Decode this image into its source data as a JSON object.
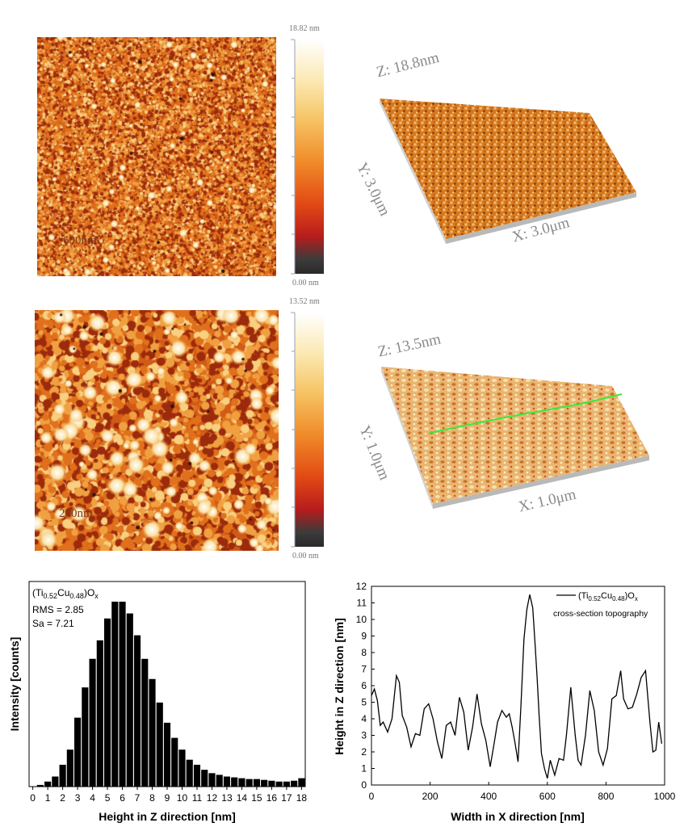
{
  "afm_2d": [
    {
      "scale_text": "600nm",
      "cbar_max": "18.82 nm",
      "cbar_min": "0.00 nm"
    },
    {
      "scale_text": "200nm",
      "cbar_max": "13.52 nm",
      "cbar_min": "0.00 nm"
    }
  ],
  "afm_3d": [
    {
      "z_label": "Z: 18.8nm",
      "y_label": "Y: 3.0μm",
      "x_label": "X: 3.0μm"
    },
    {
      "z_label": "Z: 13.5nm",
      "y_label": "Y: 1.0μm",
      "x_label": "X: 1.0μm"
    }
  ],
  "colors": {
    "afm_low": "#2a2a2a",
    "afm_mid": "#e06a1a",
    "afm_high": "#fff4d8",
    "bar_fill": "#000000",
    "trace_line": "#3aea3a"
  },
  "chart_data": [
    {
      "type": "bar",
      "title_parts": {
        "pre": "(Ti",
        "sub1": "0.52",
        "mid": "Cu",
        "sub2": "0.48",
        "post": ")O",
        "sub3": "x"
      },
      "stats": [
        "RMS = 2.85",
        "Sa = 7.21"
      ],
      "xlabel": "Height in Z direction [nm]",
      "ylabel": "Intensity [counts]",
      "xlim": [
        -0.25,
        18.25
      ],
      "xticks": [
        "0",
        "1",
        "2",
        "3",
        "4",
        "5",
        "6",
        "7",
        "8",
        "9",
        "10",
        "11",
        "12",
        "13",
        "14",
        "15",
        "16",
        "17",
        "18"
      ],
      "bin_width": 0.5,
      "bins": [
        {
          "x": 0.5,
          "v": 1
        },
        {
          "x": 1.0,
          "v": 3
        },
        {
          "x": 1.5,
          "v": 6
        },
        {
          "x": 2.0,
          "v": 13
        },
        {
          "x": 2.5,
          "v": 22
        },
        {
          "x": 3.0,
          "v": 41
        },
        {
          "x": 3.5,
          "v": 59
        },
        {
          "x": 4.0,
          "v": 76
        },
        {
          "x": 4.5,
          "v": 87
        },
        {
          "x": 5.0,
          "v": 100
        },
        {
          "x": 5.5,
          "v": 110
        },
        {
          "x": 6.0,
          "v": 110
        },
        {
          "x": 6.5,
          "v": 103
        },
        {
          "x": 7.0,
          "v": 90
        },
        {
          "x": 7.5,
          "v": 76
        },
        {
          "x": 8.0,
          "v": 64
        },
        {
          "x": 8.5,
          "v": 50
        },
        {
          "x": 9.0,
          "v": 38
        },
        {
          "x": 9.5,
          "v": 29
        },
        {
          "x": 10.0,
          "v": 22
        },
        {
          "x": 10.5,
          "v": 16
        },
        {
          "x": 11.0,
          "v": 13
        },
        {
          "x": 11.5,
          "v": 10
        },
        {
          "x": 12.0,
          "v": 8
        },
        {
          "x": 12.5,
          "v": 7
        },
        {
          "x": 13.0,
          "v": 6
        },
        {
          "x": 13.5,
          "v": 5.5
        },
        {
          "x": 14.0,
          "v": 5
        },
        {
          "x": 14.5,
          "v": 4.5
        },
        {
          "x": 15.0,
          "v": 4.5
        },
        {
          "x": 15.5,
          "v": 4
        },
        {
          "x": 16.0,
          "v": 3.5
        },
        {
          "x": 16.5,
          "v": 3
        },
        {
          "x": 17.0,
          "v": 3
        },
        {
          "x": 17.5,
          "v": 3.5
        },
        {
          "x": 18.0,
          "v": 5
        }
      ],
      "ymax": 122
    },
    {
      "type": "line",
      "legend_parts": {
        "pre": "(Ti",
        "sub1": "0.52",
        "mid": "Cu",
        "sub2": "0.48",
        "post": ")O",
        "sub3": "x"
      },
      "legend_note": "cross-section topography",
      "xlabel": "Width in X direction [nm]",
      "ylabel": "Height in Z direction [nm]",
      "xlim": [
        0,
        1000
      ],
      "ylim": [
        0,
        12
      ],
      "xticks": [
        "0",
        "200",
        "400",
        "600",
        "800",
        "1000"
      ],
      "yticks": [
        "0",
        "1",
        "2",
        "3",
        "4",
        "5",
        "6",
        "7",
        "8",
        "9",
        "10",
        "11",
        "12"
      ],
      "x": [
        0,
        10,
        20,
        30,
        40,
        55,
        70,
        85,
        95,
        105,
        120,
        135,
        150,
        165,
        180,
        195,
        210,
        225,
        240,
        255,
        270,
        285,
        300,
        315,
        330,
        345,
        360,
        375,
        390,
        405,
        420,
        430,
        445,
        460,
        470,
        480,
        490,
        500,
        510,
        520,
        530,
        540,
        550,
        558,
        565,
        572,
        580,
        590,
        600,
        610,
        625,
        640,
        655,
        665,
        680,
        695,
        705,
        715,
        730,
        745,
        760,
        775,
        790,
        805,
        820,
        835,
        850,
        860,
        875,
        890,
        905,
        920,
        935,
        950,
        960,
        970,
        980,
        990
      ],
      "y": [
        5.4,
        5.8,
        5.1,
        3.6,
        3.8,
        3.2,
        4.0,
        6.6,
        6.2,
        4.2,
        3.5,
        2.3,
        3.1,
        3.0,
        4.6,
        4.9,
        4.0,
        2.6,
        1.6,
        3.6,
        3.8,
        3.0,
        5.3,
        4.4,
        2.1,
        3.5,
        5.5,
        3.7,
        2.7,
        1.1,
        2.7,
        3.8,
        4.5,
        4.1,
        4.3,
        3.5,
        2.5,
        1.4,
        4.8,
        8.8,
        10.6,
        11.5,
        10.7,
        8.5,
        6.5,
        4.2,
        1.9,
        1.0,
        0.4,
        1.5,
        0.6,
        1.6,
        1.5,
        3.0,
        5.9,
        3.0,
        1.5,
        1.2,
        3.0,
        5.7,
        4.5,
        2.0,
        1.2,
        2.2,
        5.2,
        5.4,
        6.9,
        5.2,
        4.6,
        4.7,
        5.5,
        6.5,
        6.9,
        3.8,
        2.0,
        2.1,
        3.8,
        2.5
      ]
    }
  ]
}
